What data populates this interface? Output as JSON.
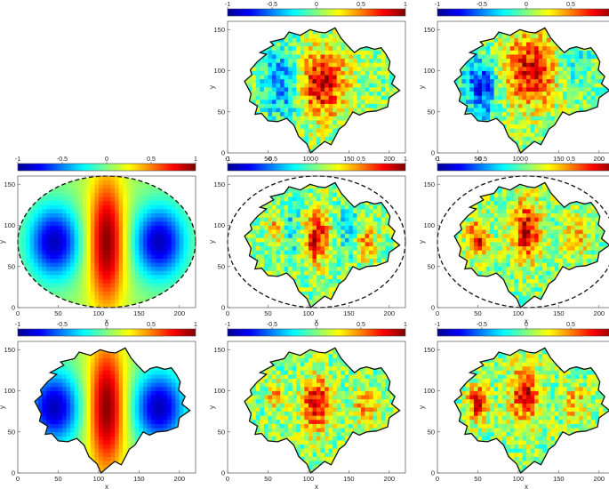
{
  "colormap": {
    "name": "jet",
    "stops": [
      "#00008f",
      "#0000ff",
      "#0080ff",
      "#00ffff",
      "#80ff80",
      "#ffff00",
      "#ff8000",
      "#ff0000",
      "#800000"
    ]
  },
  "colorbar": {
    "range": [
      -1,
      1
    ],
    "ticks": [
      {
        "value": -1,
        "label": "-1"
      },
      {
        "value": -0.5,
        "label": "-0.5"
      },
      {
        "value": 0,
        "label": "0"
      },
      {
        "value": 0.5,
        "label": "0.5"
      },
      {
        "value": 1,
        "label": "1"
      }
    ]
  },
  "axes": {
    "xlabel": "x",
    "ylabel": "y",
    "xlim": [
      0,
      220
    ],
    "ylim": [
      0,
      160
    ],
    "xticks": [
      {
        "value": 0,
        "label": "0"
      },
      {
        "value": 50,
        "label": "50"
      },
      {
        "value": 100,
        "label": "100"
      },
      {
        "value": 150,
        "label": "150"
      },
      {
        "value": 200,
        "label": "200"
      }
    ],
    "yticks": [
      {
        "value": 0,
        "label": "0"
      },
      {
        "value": 50,
        "label": "50"
      },
      {
        "value": 100,
        "label": "100"
      },
      {
        "value": 150,
        "label": "150"
      }
    ],
    "grid": false
  },
  "domains": {
    "ellipse": {
      "cx": 110,
      "cy": 80,
      "rx": 110,
      "ry": 80
    },
    "leaf_outline": [
      [
        21,
        87
      ],
      [
        30,
        95
      ],
      [
        28,
        101
      ],
      [
        37,
        111
      ],
      [
        48,
        120
      ],
      [
        40,
        122
      ],
      [
        57,
        131
      ],
      [
        53,
        135
      ],
      [
        70,
        139
      ],
      [
        76,
        147
      ],
      [
        90,
        143
      ],
      [
        102,
        150
      ],
      [
        112,
        147
      ],
      [
        121,
        146
      ],
      [
        133,
        152
      ],
      [
        140,
        140
      ],
      [
        148,
        131
      ],
      [
        157,
        122
      ],
      [
        164,
        127
      ],
      [
        172,
        129
      ],
      [
        182,
        126
      ],
      [
        190,
        128
      ],
      [
        196,
        120
      ],
      [
        201,
        111
      ],
      [
        199,
        101
      ],
      [
        207,
        93
      ],
      [
        203,
        84
      ],
      [
        213,
        76
      ],
      [
        200,
        67
      ],
      [
        198,
        56
      ],
      [
        184,
        51
      ],
      [
        172,
        50
      ],
      [
        163,
        46
      ],
      [
        155,
        50
      ],
      [
        145,
        34
      ],
      [
        138,
        29
      ],
      [
        134,
        21
      ],
      [
        128,
        10
      ],
      [
        120,
        14
      ],
      [
        110,
        6
      ],
      [
        103,
        0
      ],
      [
        98,
        11
      ],
      [
        88,
        20
      ],
      [
        82,
        34
      ],
      [
        73,
        42
      ],
      [
        62,
        38
      ],
      [
        50,
        39
      ],
      [
        42,
        48
      ],
      [
        34,
        47
      ],
      [
        37,
        57
      ],
      [
        27,
        63
      ],
      [
        29,
        72
      ]
    ]
  },
  "chart_data": [
    {
      "panel": "row1-col2",
      "type": "heatmap",
      "domain": "leaf",
      "show_ellipse": false,
      "field": "noisy",
      "blobs": [
        {
          "x": 115,
          "y": 85,
          "amp": 0.85,
          "sx": 22,
          "sy": 28
        },
        {
          "x": 70,
          "y": 85,
          "amp": -0.55,
          "sx": 18,
          "sy": 32
        }
      ],
      "xlabel": "x",
      "ylabel": "y",
      "xlim": [
        0,
        220
      ],
      "ylim": [
        0,
        160
      ],
      "clim": [
        -1,
        1
      ]
    },
    {
      "panel": "row1-col3",
      "type": "heatmap",
      "domain": "leaf",
      "show_ellipse": false,
      "field": "noisy",
      "blobs": [
        {
          "x": 115,
          "y": 100,
          "amp": 0.8,
          "sx": 25,
          "sy": 30
        },
        {
          "x": 55,
          "y": 80,
          "amp": -0.75,
          "sx": 15,
          "sy": 25
        },
        {
          "x": 165,
          "y": 105,
          "amp": -0.3,
          "sx": 18,
          "sy": 20
        }
      ],
      "xlabel": "x",
      "ylabel": "y",
      "xlim": [
        0,
        220
      ],
      "ylim": [
        0,
        160
      ],
      "clim": [
        -1,
        1
      ]
    },
    {
      "panel": "row2-col1",
      "type": "heatmap",
      "domain": "ellipse",
      "show_ellipse": true,
      "field": "smooth",
      "blobs": [
        {
          "x": 110,
          "y": 80,
          "amp": 0.95,
          "sx": 16,
          "sy": 55
        },
        {
          "x": 45,
          "y": 80,
          "amp": -0.95,
          "sx": 22,
          "sy": 30
        },
        {
          "x": 175,
          "y": 80,
          "amp": -0.95,
          "sx": 22,
          "sy": 30
        }
      ],
      "xlabel": "x",
      "ylabel": "y",
      "xlim": [
        0,
        220
      ],
      "ylim": [
        0,
        160
      ],
      "clim": [
        -1,
        1
      ]
    },
    {
      "panel": "row2-col2",
      "type": "heatmap",
      "domain": "leaf",
      "show_ellipse": true,
      "field": "noisy",
      "blobs": [
        {
          "x": 110,
          "y": 85,
          "amp": 0.8,
          "sx": 12,
          "sy": 22
        },
        {
          "x": 60,
          "y": 95,
          "amp": 0.45,
          "sx": 7,
          "sy": 10
        },
        {
          "x": 170,
          "y": 80,
          "amp": 0.45,
          "sx": 10,
          "sy": 15
        },
        {
          "x": 80,
          "y": 95,
          "amp": -0.3,
          "sx": 10,
          "sy": 25
        },
        {
          "x": 150,
          "y": 95,
          "amp": -0.3,
          "sx": 10,
          "sy": 25
        }
      ],
      "xlabel": "x",
      "ylabel": "y",
      "xlim": [
        0,
        220
      ],
      "ylim": [
        0,
        160
      ],
      "clim": [
        -1,
        1
      ]
    },
    {
      "panel": "row2-col3",
      "type": "heatmap",
      "domain": "leaf",
      "show_ellipse": true,
      "field": "noisy",
      "blobs": [
        {
          "x": 110,
          "y": 95,
          "amp": 0.8,
          "sx": 12,
          "sy": 25
        },
        {
          "x": 50,
          "y": 85,
          "amp": 0.7,
          "sx": 9,
          "sy": 15
        },
        {
          "x": 170,
          "y": 85,
          "amp": 0.45,
          "sx": 10,
          "sy": 15
        }
      ],
      "xlabel": "x",
      "ylabel": "y",
      "xlim": [
        0,
        220
      ],
      "ylim": [
        0,
        160
      ],
      "clim": [
        -1,
        1
      ]
    },
    {
      "panel": "row3-col1",
      "type": "heatmap",
      "domain": "leaf",
      "show_ellipse": false,
      "field": "smooth",
      "blobs": [
        {
          "x": 110,
          "y": 80,
          "amp": 0.95,
          "sx": 16,
          "sy": 55
        },
        {
          "x": 45,
          "y": 80,
          "amp": -0.95,
          "sx": 22,
          "sy": 30
        },
        {
          "x": 175,
          "y": 80,
          "amp": -0.95,
          "sx": 22,
          "sy": 30
        }
      ],
      "xlabel": "x",
      "ylabel": "y",
      "xlim": [
        0,
        220
      ],
      "ylim": [
        0,
        160
      ],
      "clim": [
        -1,
        1
      ]
    },
    {
      "panel": "row3-col2",
      "type": "heatmap",
      "domain": "leaf",
      "show_ellipse": false,
      "field": "noisy",
      "blobs": [
        {
          "x": 110,
          "y": 85,
          "amp": 0.85,
          "sx": 12,
          "sy": 22
        },
        {
          "x": 60,
          "y": 95,
          "amp": 0.45,
          "sx": 7,
          "sy": 10
        },
        {
          "x": 170,
          "y": 80,
          "amp": 0.4,
          "sx": 10,
          "sy": 15
        }
      ],
      "xlabel": "x",
      "ylabel": "y",
      "xlim": [
        0,
        220
      ],
      "ylim": [
        0,
        160
      ],
      "clim": [
        -1,
        1
      ]
    },
    {
      "panel": "row3-col3",
      "type": "heatmap",
      "domain": "leaf",
      "show_ellipse": false,
      "field": "noisy",
      "blobs": [
        {
          "x": 108,
          "y": 95,
          "amp": 0.8,
          "sx": 12,
          "sy": 25
        },
        {
          "x": 50,
          "y": 85,
          "amp": 0.75,
          "sx": 9,
          "sy": 15
        },
        {
          "x": 170,
          "y": 85,
          "amp": 0.4,
          "sx": 10,
          "sy": 15
        }
      ],
      "xlabel": "x",
      "ylabel": "y",
      "xlim": [
        0,
        220
      ],
      "ylim": [
        0,
        160
      ],
      "clim": [
        -1,
        1
      ]
    }
  ]
}
